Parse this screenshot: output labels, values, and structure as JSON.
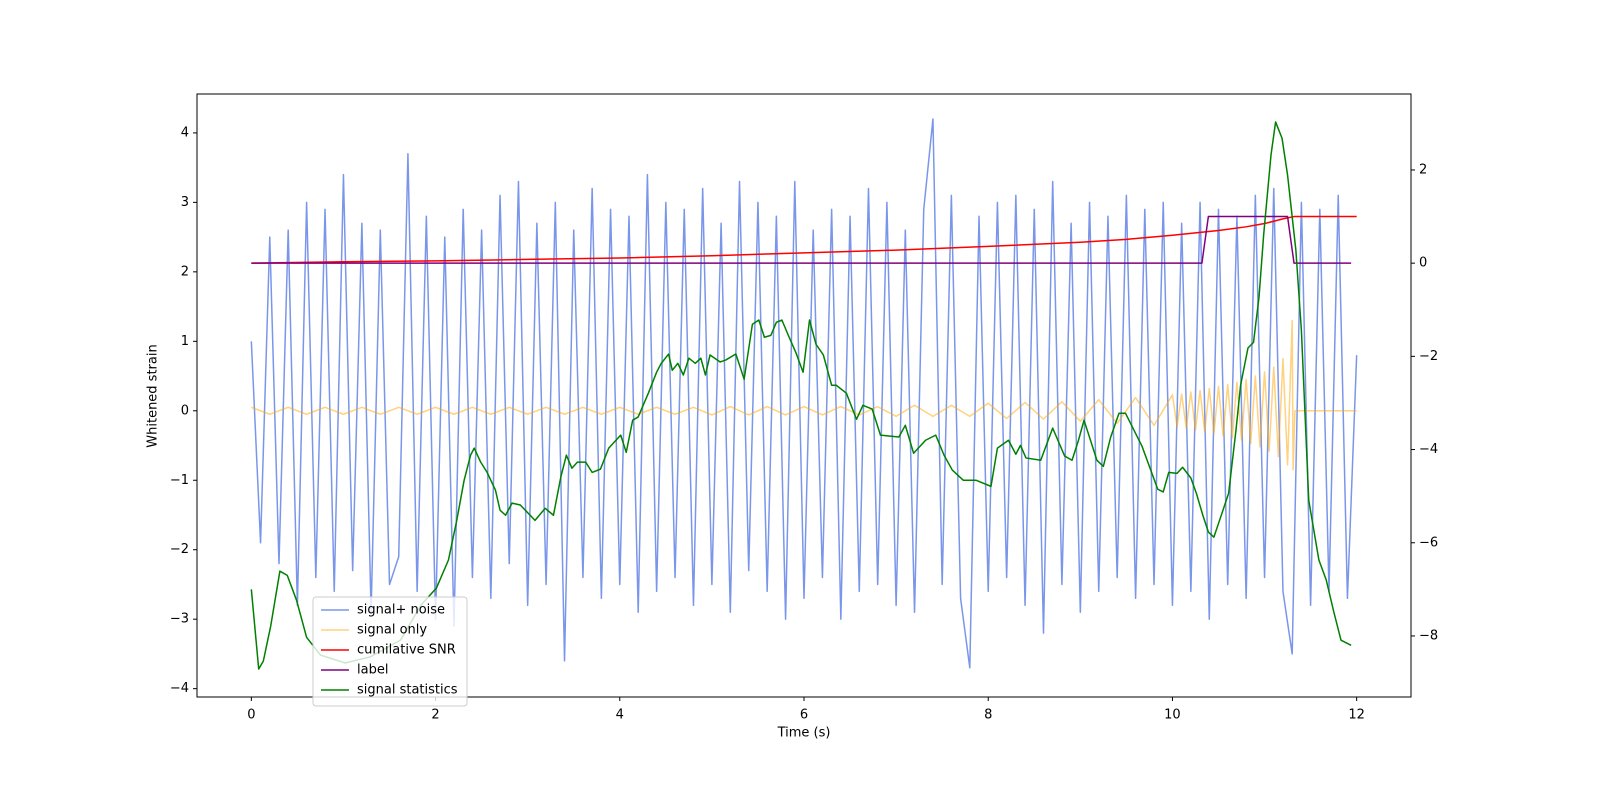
{
  "chart_data": {
    "type": "line",
    "xlabel": "Time (s)",
    "ylabel": "Whitened strain",
    "xlim": [
      -0.59,
      12.59
    ],
    "ylim": [
      -4.12,
      4.56
    ],
    "y2lim": [
      -9.31,
      3.63
    ],
    "xticks": [
      0,
      2,
      4,
      6,
      8,
      10,
      12
    ],
    "yticks": [
      {
        "value": -4,
        "label": "−4"
      },
      {
        "value": -3,
        "label": "−3"
      },
      {
        "value": -2,
        "label": "−2"
      },
      {
        "value": -1,
        "label": "−1"
      },
      0,
      1,
      2,
      3,
      4
    ],
    "y2ticks": [
      {
        "value": -8,
        "label": "−8"
      },
      {
        "value": -6,
        "label": "−6"
      },
      {
        "value": -4,
        "label": "−4"
      },
      {
        "value": -2,
        "label": "−2"
      },
      0,
      2
    ],
    "legend": "lower left",
    "series": [
      {
        "name": "signal+ noise",
        "color": "#4169e1",
        "alpha": 0.7,
        "axis": "y",
        "x": [
          0,
          0.1,
          0.2,
          0.3,
          0.4,
          0.5,
          0.6,
          0.7,
          0.8,
          0.9,
          1,
          1.1,
          1.2,
          1.3,
          1.4,
          1.5,
          1.6,
          1.7,
          1.8,
          1.9,
          2,
          2.1,
          2.2,
          2.3,
          2.4,
          2.5,
          2.6,
          2.7,
          2.8,
          2.9,
          3,
          3.1,
          3.2,
          3.3,
          3.4,
          3.5,
          3.6,
          3.7,
          3.8,
          3.9,
          4,
          4.1,
          4.2,
          4.3,
          4.4,
          4.5,
          4.6,
          4.7,
          4.8,
          4.9,
          5,
          5.1,
          5.2,
          5.3,
          5.4,
          5.5,
          5.6,
          5.7,
          5.8,
          5.9,
          6,
          6.1,
          6.2,
          6.3,
          6.4,
          6.5,
          6.6,
          6.7,
          6.8,
          6.9,
          7,
          7.1,
          7.2,
          7.3,
          7.4,
          7.5,
          7.6,
          7.7,
          7.8,
          7.9,
          8,
          8.1,
          8.2,
          8.3,
          8.4,
          8.5,
          8.6,
          8.7,
          8.8,
          8.9,
          9,
          9.1,
          9.2,
          9.3,
          9.4,
          9.5,
          9.6,
          9.7,
          9.8,
          9.9,
          10,
          10.1,
          10.2,
          10.3,
          10.4,
          10.5,
          10.6,
          10.7,
          10.8,
          10.9,
          11,
          11.1,
          11.2,
          11.3,
          11.4,
          11.5,
          11.6,
          11.7,
          11.8,
          11.9,
          12
        ],
        "values": [
          1.0,
          -1.9,
          2.5,
          -2.2,
          2.6,
          -2.8,
          3.0,
          -2.4,
          2.9,
          -2.6,
          3.4,
          -2.3,
          2.7,
          -2.9,
          2.6,
          -2.5,
          -2.1,
          3.7,
          -2.6,
          2.8,
          -3.0,
          2.5,
          -3.1,
          2.9,
          -2.4,
          2.6,
          -2.7,
          3.1,
          -2.2,
          3.3,
          -2.8,
          2.7,
          -2.5,
          3.0,
          -3.6,
          2.6,
          -2.4,
          3.2,
          -2.7,
          2.9,
          -2.5,
          2.8,
          -2.9,
          3.4,
          -2.6,
          3.0,
          -2.4,
          2.9,
          -2.8,
          3.2,
          -2.5,
          2.7,
          -2.9,
          3.3,
          -2.3,
          3.0,
          -2.6,
          2.8,
          -3.0,
          3.3,
          -2.7,
          2.6,
          -2.4,
          2.9,
          -3.0,
          2.8,
          -2.6,
          3.2,
          -2.5,
          3.0,
          -2.8,
          2.6,
          -2.9,
          2.9,
          4.2,
          -2.5,
          3.1,
          -2.7,
          -3.7,
          2.8,
          -2.6,
          3.0,
          -2.4,
          3.1,
          -2.8,
          2.9,
          -3.2,
          3.3,
          -2.5,
          2.7,
          -2.9,
          3.0,
          -2.6,
          2.8,
          -2.4,
          3.1,
          -2.7,
          2.9,
          -2.5,
          3.0,
          -2.8,
          2.7,
          -2.6,
          3.0,
          -3.0,
          2.9,
          -2.5,
          2.8,
          -2.7,
          3.1,
          -2.4,
          3.2,
          -2.6,
          -3.5,
          3.0,
          -2.8,
          2.9,
          -2.6,
          3.1,
          -2.7,
          0.8
        ]
      },
      {
        "name": "signal only",
        "color": "#ffa500",
        "alpha": 0.5,
        "axis": "y",
        "x": [
          0,
          0.2,
          0.4,
          0.6,
          0.8,
          1,
          1.2,
          1.4,
          1.6,
          1.8,
          2,
          2.2,
          2.4,
          2.6,
          2.8,
          3,
          3.2,
          3.4,
          3.6,
          3.8,
          4,
          4.2,
          4.4,
          4.6,
          4.8,
          5,
          5.2,
          5.4,
          5.6,
          5.8,
          6,
          6.2,
          6.4,
          6.6,
          6.8,
          7,
          7.2,
          7.4,
          7.6,
          7.8,
          8,
          8.2,
          8.4,
          8.6,
          8.8,
          9,
          9.2,
          9.4,
          9.6,
          9.8,
          10,
          10.05,
          10.1,
          10.15,
          10.2,
          10.25,
          10.3,
          10.35,
          10.4,
          10.45,
          10.5,
          10.55,
          10.6,
          10.65,
          10.7,
          10.75,
          10.8,
          10.85,
          10.9,
          10.95,
          11,
          11.05,
          11.1,
          11.15,
          11.2,
          11.25,
          11.3,
          11.31,
          11.33,
          12
        ],
        "values": [
          0.05,
          -0.05,
          0.05,
          -0.05,
          0.05,
          -0.05,
          0.05,
          -0.05,
          0.05,
          -0.05,
          0.05,
          -0.05,
          0.05,
          -0.05,
          0.05,
          -0.05,
          0.05,
          -0.05,
          0.05,
          -0.05,
          0.05,
          -0.05,
          0.05,
          -0.05,
          0.05,
          -0.06,
          0.06,
          -0.06,
          0.06,
          -0.06,
          0.06,
          -0.06,
          0.06,
          -0.06,
          0.06,
          -0.08,
          0.08,
          -0.08,
          0.08,
          -0.08,
          0.11,
          -0.11,
          0.12,
          -0.12,
          0.13,
          -0.15,
          0.16,
          -0.18,
          0.19,
          -0.21,
          0.23,
          -0.23,
          0.24,
          -0.25,
          0.27,
          -0.28,
          0.29,
          -0.3,
          0.32,
          -0.33,
          0.35,
          -0.36,
          0.38,
          -0.39,
          0.41,
          -0.42,
          0.45,
          -0.47,
          0.5,
          -0.52,
          0.56,
          -0.58,
          0.63,
          -0.66,
          0.75,
          -0.78,
          1.3,
          -0.85,
          0,
          0
        ]
      },
      {
        "name": "cumilative SNR",
        "color": "#ff0000",
        "alpha": 1,
        "axis": "y2",
        "x": [
          0,
          1,
          2,
          3,
          4,
          5,
          6,
          7,
          8,
          9,
          9.5,
          10,
          10.5,
          10.8,
          11,
          11.2,
          11.32,
          12
        ],
        "values": [
          0.0,
          0.03,
          0.05,
          0.08,
          0.11,
          0.16,
          0.22,
          0.28,
          0.36,
          0.45,
          0.51,
          0.6,
          0.7,
          0.78,
          0.85,
          0.95,
          1.0,
          1.0
        ]
      },
      {
        "name": "label",
        "color": "#800080",
        "alpha": 1,
        "axis": "y2",
        "x": [
          0,
          10.32,
          10.39,
          11.25,
          11.32,
          11.94
        ],
        "values": [
          0,
          0,
          1,
          1,
          0,
          0
        ]
      },
      {
        "name": "signal statistics",
        "color": "#008000",
        "alpha": 1,
        "axis": "y2",
        "x": [
          0,
          0.08,
          0.13,
          0.21,
          0.31,
          0.39,
          0.49,
          0.6,
          0.75,
          1.02,
          1.29,
          1.62,
          1.84,
          2.01,
          2.14,
          2.23,
          2.31,
          2.38,
          2.42,
          2.49,
          2.56,
          2.65,
          2.7,
          2.76,
          2.83,
          2.92,
          3.08,
          3.19,
          3.28,
          3.36,
          3.42,
          3.48,
          3.54,
          3.63,
          3.7,
          3.79,
          3.88,
          4.01,
          4.07,
          4.14,
          4.2,
          4.31,
          4.4,
          4.45,
          4.53,
          4.57,
          4.63,
          4.69,
          4.75,
          4.82,
          4.88,
          4.93,
          4.98,
          5.09,
          5.15,
          5.26,
          5.35,
          5.44,
          5.51,
          5.57,
          5.64,
          5.7,
          5.76,
          5.83,
          5.91,
          5.99,
          6.06,
          6.13,
          6.21,
          6.3,
          6.35,
          6.46,
          6.57,
          6.64,
          6.74,
          6.83,
          7.03,
          7.1,
          7.19,
          7.32,
          7.43,
          7.52,
          7.61,
          7.73,
          7.87,
          8.03,
          8.1,
          8.22,
          8.3,
          8.35,
          8.41,
          8.57,
          8.7,
          8.83,
          8.91,
          8.98,
          9.04,
          9.18,
          9.25,
          9.33,
          9.42,
          9.49,
          9.67,
          9.84,
          9.9,
          9.96,
          10.05,
          10.11,
          10.2,
          10.26,
          10.33,
          10.39,
          10.45,
          10.52,
          10.61,
          10.69,
          10.74,
          10.82,
          10.88,
          10.94,
          10.99,
          11.07,
          11.12,
          11.19,
          11.25,
          11.34,
          11.4,
          11.48,
          11.59,
          11.67,
          11.75,
          11.83,
          11.94
        ],
        "values": [
          -7.0,
          -8.71,
          -8.54,
          -7.79,
          -6.61,
          -6.7,
          -7.23,
          -8.03,
          -8.41,
          -8.58,
          -8.45,
          -8.09,
          -7.34,
          -6.97,
          -6.37,
          -5.52,
          -4.66,
          -4.12,
          -3.97,
          -4.27,
          -4.49,
          -4.87,
          -5.3,
          -5.41,
          -5.15,
          -5.19,
          -5.52,
          -5.26,
          -5.41,
          -4.59,
          -4.12,
          -4.4,
          -4.27,
          -4.27,
          -4.49,
          -4.42,
          -3.97,
          -3.69,
          -4.06,
          -3.37,
          -3.3,
          -2.79,
          -2.34,
          -2.15,
          -1.95,
          -2.3,
          -2.15,
          -2.4,
          -2.04,
          -2.15,
          -2.04,
          -2.4,
          -1.97,
          -2.12,
          -2.08,
          -1.95,
          -2.49,
          -1.31,
          -1.22,
          -1.59,
          -1.55,
          -1.27,
          -1.22,
          -1.55,
          -1.91,
          -2.34,
          -1.22,
          -1.74,
          -1.97,
          -2.62,
          -2.62,
          -2.79,
          -3.35,
          -3.05,
          -3.13,
          -3.69,
          -3.73,
          -3.48,
          -4.08,
          -3.8,
          -3.69,
          -4.12,
          -4.44,
          -4.66,
          -4.66,
          -4.79,
          -3.97,
          -3.8,
          -4.1,
          -3.91,
          -4.18,
          -4.23,
          -3.54,
          -4.14,
          -4.23,
          -3.8,
          -3.37,
          -4.23,
          -4.36,
          -3.73,
          -3.22,
          -3.22,
          -3.93,
          -4.85,
          -4.91,
          -4.49,
          -4.51,
          -4.38,
          -4.61,
          -4.94,
          -5.41,
          -5.77,
          -5.88,
          -5.47,
          -4.94,
          -3.58,
          -2.62,
          -1.82,
          -1.7,
          -0.73,
          0.6,
          2.32,
          3.03,
          2.68,
          1.89,
          0.28,
          -1.44,
          -5.09,
          -6.37,
          -6.8,
          -7.47,
          -8.09,
          -8.2
        ]
      }
    ]
  }
}
